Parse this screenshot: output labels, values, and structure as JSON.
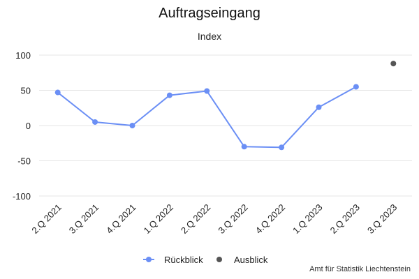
{
  "chart_data": {
    "type": "line",
    "title": "Auftragseingang",
    "subtitle": "Index",
    "categories": [
      "2.Q 2021",
      "3.Q 2021",
      "4.Q 2021",
      "1.Q 2022",
      "2.Q 2022",
      "3.Q 2022",
      "4.Q 2022",
      "1.Q 2023",
      "2.Q 2023",
      "3.Q 2023"
    ],
    "series": [
      {
        "name": "Rückblick",
        "color": "#6b8ff5",
        "values": [
          47,
          5,
          0,
          43,
          49,
          -30,
          -31,
          26,
          55,
          null
        ]
      },
      {
        "name": "Ausblick",
        "color": "#555555",
        "values": [
          null,
          null,
          null,
          null,
          null,
          null,
          null,
          null,
          null,
          88
        ]
      }
    ],
    "ylim": [
      -100,
      100
    ],
    "yticks": [
      -100,
      -50,
      0,
      50,
      100
    ],
    "grid": true,
    "legend_position": "bottom-center",
    "credits": "Amt für Statistik Liechtenstein"
  }
}
